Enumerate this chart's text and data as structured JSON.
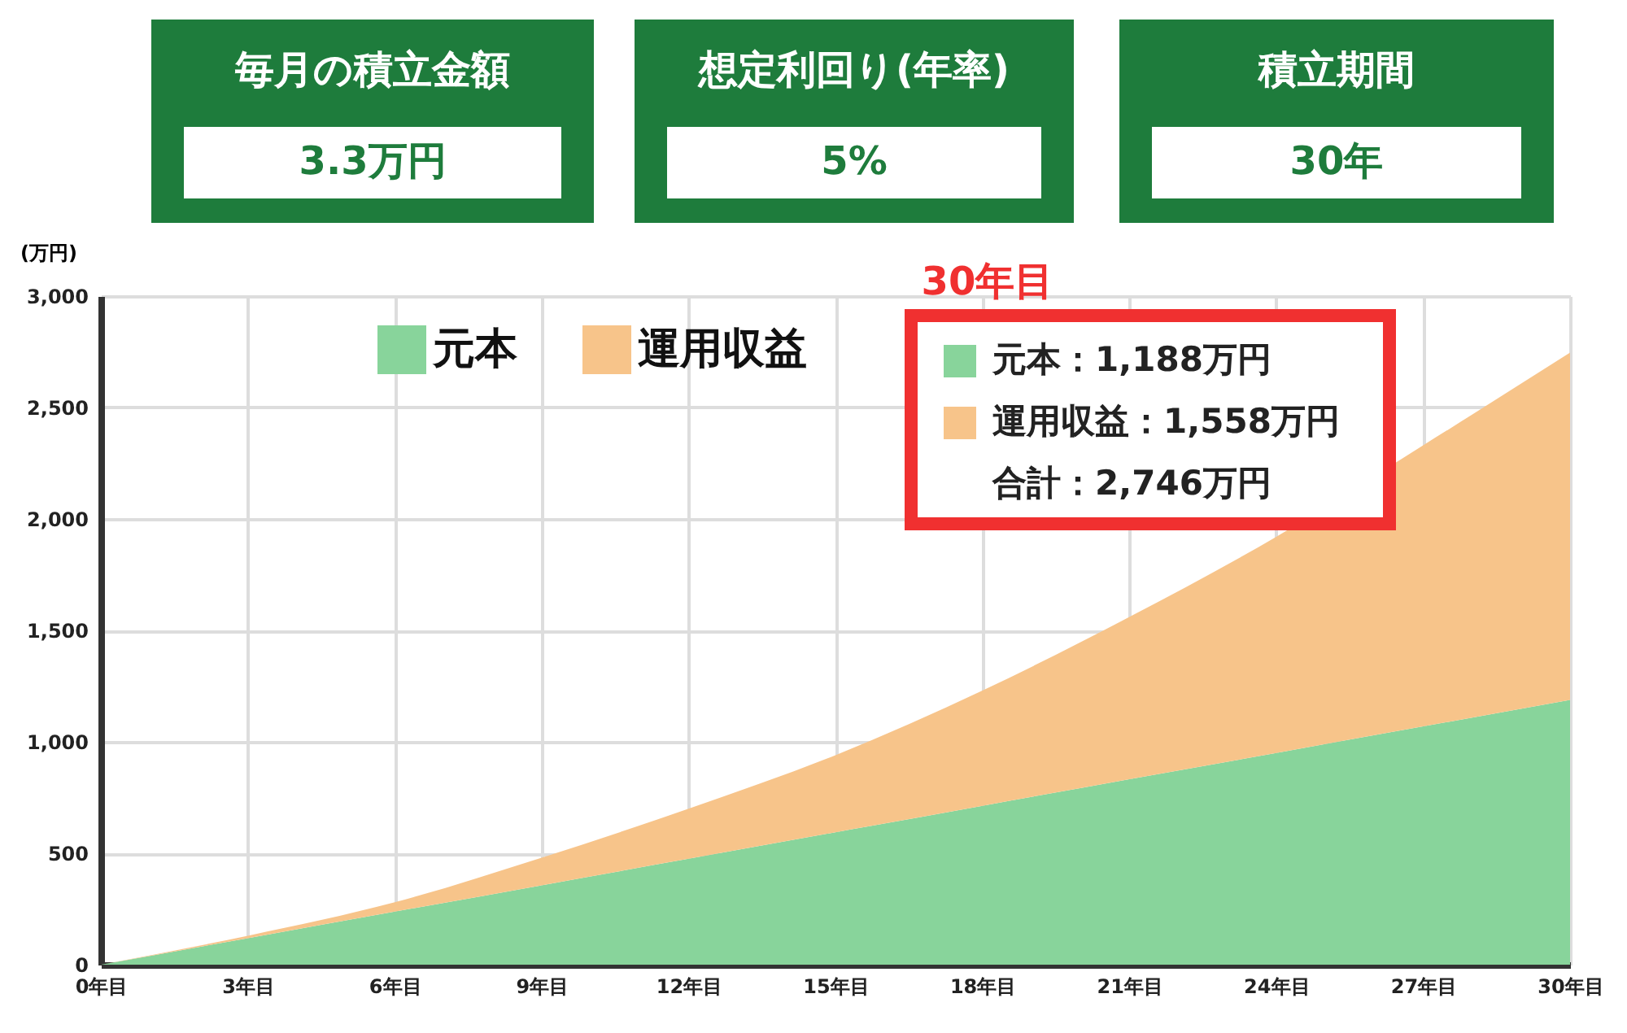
{
  "chart_data": {
    "type": "area",
    "stacked": true,
    "ylabel": "(万円)",
    "x": [
      0,
      3,
      6,
      9,
      12,
      15,
      18,
      21,
      24,
      27,
      30
    ],
    "series": [
      {
        "name": "元本",
        "color": "#88d49b",
        "values": [
          0,
          119,
          238,
          356,
          475,
          594,
          713,
          832,
          950,
          1069,
          1188
        ]
      },
      {
        "name": "運用収益",
        "color": "#f7c48a",
        "values": [
          0,
          11,
          42,
          124,
          225,
          346,
          517,
          728,
          970,
          1261,
          1558
        ]
      }
    ],
    "xlim": [
      0,
      30
    ],
    "xticks": [
      {
        "value": 0,
        "label": "0年目"
      },
      {
        "value": 3,
        "label": "3年目"
      },
      {
        "value": 6,
        "label": "6年目"
      },
      {
        "value": 9,
        "label": "9年目"
      },
      {
        "value": 12,
        "label": "12年目"
      },
      {
        "value": 15,
        "label": "15年目"
      },
      {
        "value": 18,
        "label": "18年目"
      },
      {
        "value": 21,
        "label": "21年目"
      },
      {
        "value": 24,
        "label": "24年目"
      },
      {
        "value": 27,
        "label": "27年目"
      },
      {
        "value": 30,
        "label": "30年目"
      }
    ],
    "ylim": [
      0,
      3000
    ],
    "yticks": [
      0,
      500,
      {
        "value": 1000,
        "label": "1,000"
      },
      {
        "value": 1500,
        "label": "1,500"
      },
      {
        "value": 2000,
        "label": "2,000"
      },
      {
        "value": 2500,
        "label": "2,500"
      },
      {
        "value": 3000,
        "label": "3,000"
      }
    ],
    "grid": true,
    "legend": "top",
    "annotations": [
      "毎月の積立金額",
      "3.3万円",
      "想定利回り(年率)",
      "5%",
      "積立期間",
      "30年",
      "30年目",
      "元本：1,188万円",
      "運用収益：1,558万円",
      "合計：2,746万円"
    ]
  }
}
